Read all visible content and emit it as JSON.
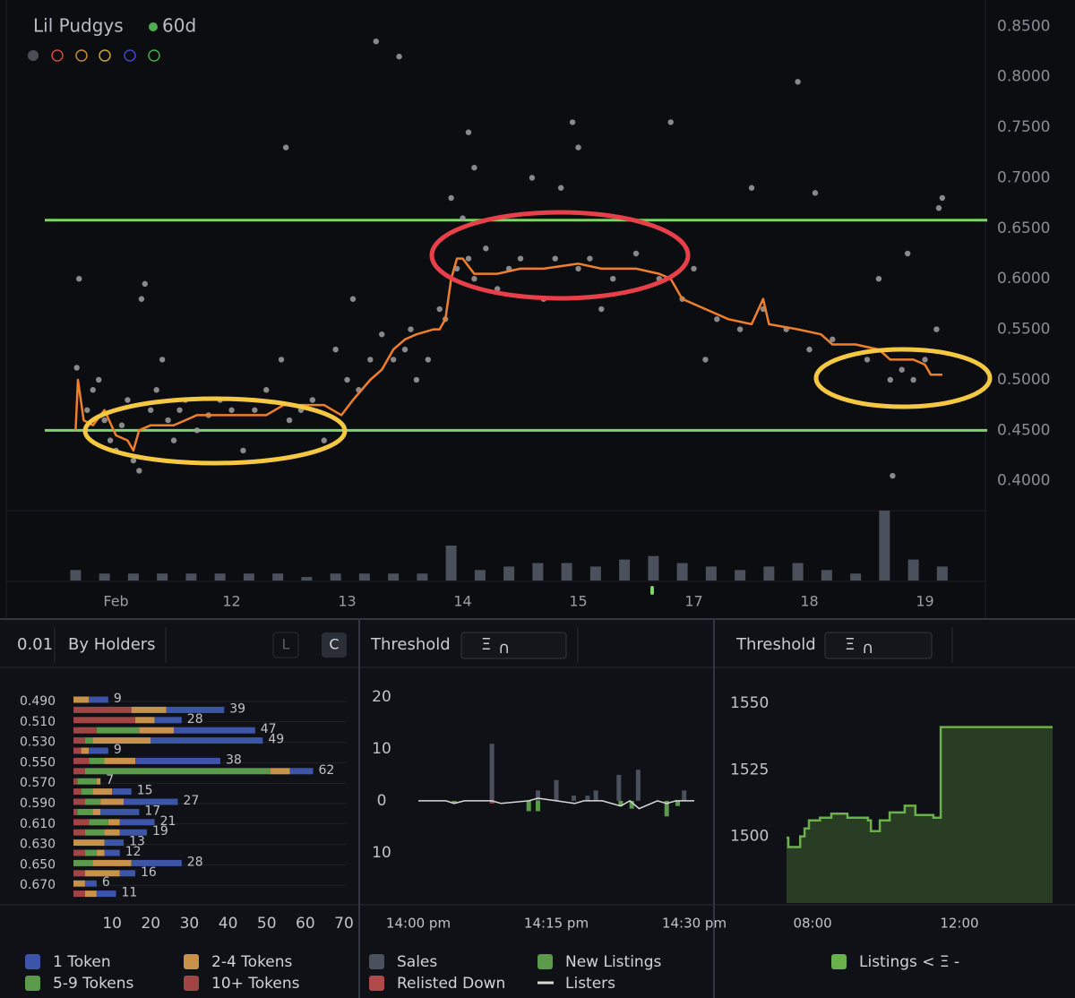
{
  "controls": {
    "precision": "0.01",
    "group": "By Holders",
    "toggle_l": "L",
    "toggle_c": "C",
    "threshold_1": {
      "label": "Threshold",
      "symbol": "Ξ",
      "icon": "∩"
    },
    "threshold_2": {
      "label": "Threshold",
      "symbol": "Ξ",
      "icon": "∩"
    }
  },
  "chart_data": [
    {
      "type": "scatter",
      "title": "Lil Pudgys",
      "subtitle": "60d",
      "xlim": [
        0.05,
        8.5
      ],
      "xticks": [
        {
          "value": 1,
          "label": "Feb"
        },
        {
          "value": 2,
          "label": "12"
        },
        {
          "value": 3,
          "label": "13"
        },
        {
          "value": 4,
          "label": "14"
        },
        {
          "value": 5,
          "label": "15"
        },
        {
          "value": 6,
          "label": "17"
        },
        {
          "value": 7,
          "label": "18"
        },
        {
          "value": 8,
          "label": "19"
        }
      ],
      "ylim": [
        0.39,
        0.86
      ],
      "yticks": [
        {
          "value": 0.4,
          "label": "0.4000"
        },
        {
          "value": 0.45,
          "label": "0.4500"
        },
        {
          "value": 0.5,
          "label": "0.5000"
        },
        {
          "value": 0.55,
          "label": "0.5500"
        },
        {
          "value": 0.6,
          "label": "0.6000"
        },
        {
          "value": 0.65,
          "label": "0.6500"
        },
        {
          "value": 0.7,
          "label": "0.7000"
        },
        {
          "value": 0.75,
          "label": "0.7500"
        },
        {
          "value": 0.8,
          "label": "0.8000"
        },
        {
          "value": 0.85,
          "label": "0.8500"
        }
      ],
      "points": {
        "color": "#a0a0a0",
        "x": [
          0.66,
          0.68,
          0.75,
          0.8,
          0.85,
          0.9,
          0.95,
          1.0,
          1.05,
          1.1,
          1.15,
          1.2,
          1.22,
          1.25,
          1.3,
          1.35,
          1.4,
          1.45,
          1.5,
          1.55,
          1.6,
          1.7,
          1.8,
          1.9,
          2.0,
          2.1,
          2.2,
          2.3,
          2.47,
          2.5,
          2.6,
          2.7,
          2.8,
          2.9,
          3.0,
          3.05,
          3.1,
          3.2,
          3.3,
          3.4,
          3.5,
          3.55,
          3.6,
          3.7,
          3.8,
          3.85,
          3.9,
          3.95,
          4.0,
          4.05,
          4.1,
          4.2,
          4.3,
          4.4,
          4.5,
          4.6,
          4.7,
          4.8,
          4.85,
          4.95,
          5.0,
          5.1,
          5.2,
          5.3,
          5.5,
          5.7,
          5.8,
          5.9,
          6.0,
          6.2,
          6.4,
          6.5,
          6.6,
          6.8,
          6.9,
          7.0,
          7.05,
          7.2,
          7.5,
          7.6,
          7.7,
          7.72,
          7.8,
          7.85,
          7.9,
          8.0,
          8.1,
          8.12,
          8.15,
          6.1,
          2.43,
          3.25,
          3.45,
          4.05,
          4.1,
          5.0
        ],
        "y": [
          0.512,
          0.6,
          0.47,
          0.49,
          0.5,
          0.46,
          0.44,
          0.43,
          0.455,
          0.48,
          0.42,
          0.41,
          0.58,
          0.595,
          0.47,
          0.49,
          0.52,
          0.46,
          0.44,
          0.47,
          0.48,
          0.45,
          0.465,
          0.48,
          0.47,
          0.43,
          0.47,
          0.49,
          0.73,
          0.46,
          0.47,
          0.48,
          0.44,
          0.53,
          0.5,
          0.58,
          0.49,
          0.52,
          0.545,
          0.52,
          0.53,
          0.55,
          0.5,
          0.52,
          0.57,
          0.56,
          0.68,
          0.61,
          0.66,
          0.62,
          0.6,
          0.63,
          0.59,
          0.61,
          0.62,
          0.7,
          0.58,
          0.62,
          0.69,
          0.755,
          0.61,
          0.62,
          0.57,
          0.6,
          0.625,
          0.6,
          0.755,
          0.58,
          0.61,
          0.56,
          0.55,
          0.69,
          0.57,
          0.55,
          0.795,
          0.53,
          0.685,
          0.54,
          0.52,
          0.6,
          0.5,
          0.405,
          0.51,
          0.625,
          0.5,
          0.52,
          0.55,
          0.67,
          0.68,
          0.52,
          0.52,
          0.835,
          0.82,
          0.745,
          0.71,
          0.73
        ]
      },
      "line": {
        "color": "#f07f2a",
        "x": [
          0.65,
          0.67,
          0.72,
          0.8,
          0.9,
          1.0,
          1.1,
          1.15,
          1.2,
          1.3,
          1.5,
          1.6,
          1.7,
          2.0,
          2.3,
          2.45,
          2.6,
          2.8,
          2.95,
          3.05,
          3.2,
          3.3,
          3.4,
          3.5,
          3.6,
          3.75,
          3.8,
          3.85,
          3.9,
          3.95,
          4.0,
          4.1,
          4.3,
          4.5,
          4.7,
          5.0,
          5.2,
          5.5,
          5.7,
          5.8,
          5.9,
          6.1,
          6.3,
          6.5,
          6.6,
          6.65,
          6.9,
          7.1,
          7.2,
          7.4,
          7.6,
          7.7,
          7.9,
          8.0,
          8.05,
          8.15
        ],
        "y": [
          0.45,
          0.5,
          0.46,
          0.455,
          0.47,
          0.445,
          0.44,
          0.43,
          0.45,
          0.455,
          0.455,
          0.46,
          0.465,
          0.465,
          0.465,
          0.475,
          0.475,
          0.475,
          0.465,
          0.48,
          0.5,
          0.51,
          0.53,
          0.54,
          0.545,
          0.55,
          0.55,
          0.56,
          0.6,
          0.62,
          0.62,
          0.605,
          0.605,
          0.61,
          0.61,
          0.615,
          0.61,
          0.61,
          0.605,
          0.6,
          0.58,
          0.57,
          0.56,
          0.555,
          0.58,
          0.555,
          0.55,
          0.545,
          0.535,
          0.535,
          0.53,
          0.52,
          0.52,
          0.515,
          0.505,
          0.505
        ]
      },
      "hlines": {
        "color": "#7ed46a",
        "values": [
          0.658,
          0.45
        ]
      },
      "volume": {
        "color": "#4a505c",
        "x": [
          0.65,
          0.9,
          1.15,
          1.4,
          1.65,
          1.9,
          2.15,
          2.4,
          2.65,
          2.9,
          3.15,
          3.4,
          3.65,
          3.9,
          4.15,
          4.4,
          4.65,
          4.9,
          5.15,
          5.4,
          5.65,
          5.9,
          6.15,
          6.4,
          6.65,
          6.9,
          7.15,
          7.4,
          7.65,
          7.9,
          8.15
        ],
        "values": [
          3,
          2,
          2,
          2,
          2,
          2,
          2,
          2,
          1,
          2,
          2,
          2,
          2,
          10,
          3,
          4,
          5,
          5,
          4,
          6,
          7,
          5,
          4,
          3,
          4,
          5,
          3,
          2,
          20,
          6,
          4
        ]
      }
    },
    {
      "type": "stacked_bar_h",
      "categories": [
        "0.490",
        null,
        "0.510",
        null,
        "0.530",
        null,
        "0.550",
        null,
        "0.570",
        null,
        "0.590",
        null,
        "0.610",
        null,
        "0.630",
        null,
        "0.650",
        null,
        "0.670",
        null
      ],
      "series": [
        {
          "name": "1 Token",
          "color": "#3d55a8",
          "values": [
            5,
            15,
            7,
            21,
            29,
            5,
            22,
            6,
            0,
            5,
            14,
            10,
            9,
            7,
            5,
            4,
            13,
            4,
            3,
            5
          ]
        },
        {
          "name": "2-4 Tokens",
          "color": "#c9924a",
          "values": [
            4,
            9,
            5,
            9,
            15,
            2,
            8,
            5,
            1,
            5,
            6,
            2,
            3,
            4,
            8,
            2,
            10,
            9,
            3,
            3
          ]
        },
        {
          "name": "5-9 Tokens",
          "color": "#5a9a4a",
          "values": [
            0,
            0,
            0,
            11,
            2,
            0,
            4,
            48,
            5,
            3,
            4,
            4,
            5,
            5,
            0,
            3,
            5,
            0,
            0,
            0
          ]
        },
        {
          "name": "10+ Tokens",
          "color": "#a04444",
          "values": [
            0,
            15,
            16,
            6,
            3,
            2,
            4,
            3,
            1,
            2,
            3,
            1,
            4,
            3,
            0,
            3,
            0,
            3,
            0,
            3
          ]
        }
      ],
      "totals": [
        9,
        39,
        28,
        47,
        49,
        9,
        38,
        62,
        7,
        15,
        27,
        17,
        21,
        19,
        13,
        12,
        28,
        16,
        6,
        11
      ],
      "xlim": [
        0,
        70
      ],
      "xticks": [
        10,
        20,
        30,
        40,
        50,
        60,
        70
      ]
    },
    {
      "type": "bar_line",
      "xlim": [
        0,
        30
      ],
      "xticks": [
        {
          "value": 0,
          "label": "14:00 pm"
        },
        {
          "value": 15,
          "label": "14:15 pm"
        },
        {
          "value": 30,
          "label": "14:30 pm"
        }
      ],
      "ylim": [
        -19.7,
        21.4
      ],
      "yticks": [
        20,
        10,
        0,
        {
          "value": -10,
          "label": "10"
        }
      ],
      "series": [
        {
          "name": "Sales",
          "kind": "bar",
          "color": "#4a505c",
          "x": [
            8.0,
            13.0,
            15.0,
            16.9,
            18.4,
            19.3,
            21.8,
            23.9,
            28.9
          ],
          "values": [
            11,
            2,
            4,
            1,
            1,
            2,
            5,
            6,
            2
          ]
        },
        {
          "name": "Relisted Down",
          "kind": "bar",
          "color": "#b04a4a",
          "x": [
            8.0
          ],
          "values": [
            -0.5
          ]
        },
        {
          "name": "New Listings",
          "kind": "bar",
          "color": "#5a9a4a",
          "x": [
            3.9,
            12.0,
            13.0,
            22.0,
            23.2,
            27.0,
            28.2
          ],
          "values": [
            -0.5,
            -2,
            -2,
            -1,
            -1.5,
            -3,
            -1
          ]
        },
        {
          "name": "Listers",
          "kind": "line",
          "color": "#d8d8d8",
          "x": [
            0,
            3,
            3.9,
            5,
            8,
            9,
            12,
            13,
            15,
            17,
            18,
            20,
            22,
            23,
            24,
            26,
            27,
            28,
            29,
            30
          ],
          "values": [
            0,
            0,
            -0.5,
            0,
            0,
            -0.5,
            0,
            0.5,
            0,
            -0.5,
            0,
            0,
            -1,
            0,
            -1.5,
            0,
            -0.5,
            0,
            0,
            0
          ]
        }
      ]
    },
    {
      "type": "step_area",
      "xlim": [
        7.29,
        14.54
      ],
      "xticks": [
        {
          "value": 8,
          "label": "08:00"
        },
        {
          "value": 12,
          "label": "12:00"
        }
      ],
      "ylim": [
        1475,
        1555
      ],
      "yticks": [
        1500,
        1525,
        1550
      ],
      "series": [
        {
          "name": "Listings < Ξ -",
          "color": "#6ab04c",
          "x": [
            7.29,
            7.34,
            7.66,
            7.78,
            7.9,
            8.2,
            8.51,
            8.95,
            9.51,
            9.59,
            9.83,
            10.1,
            10.51,
            10.8,
            11.29,
            11.49,
            14.54
          ],
          "values": [
            1499.5,
            1496,
            1500,
            1503,
            1506,
            1507,
            1508.5,
            1507,
            1506,
            1502,
            1506,
            1509,
            1511.5,
            1508,
            1507,
            1541,
            1541
          ]
        }
      ]
    }
  ]
}
